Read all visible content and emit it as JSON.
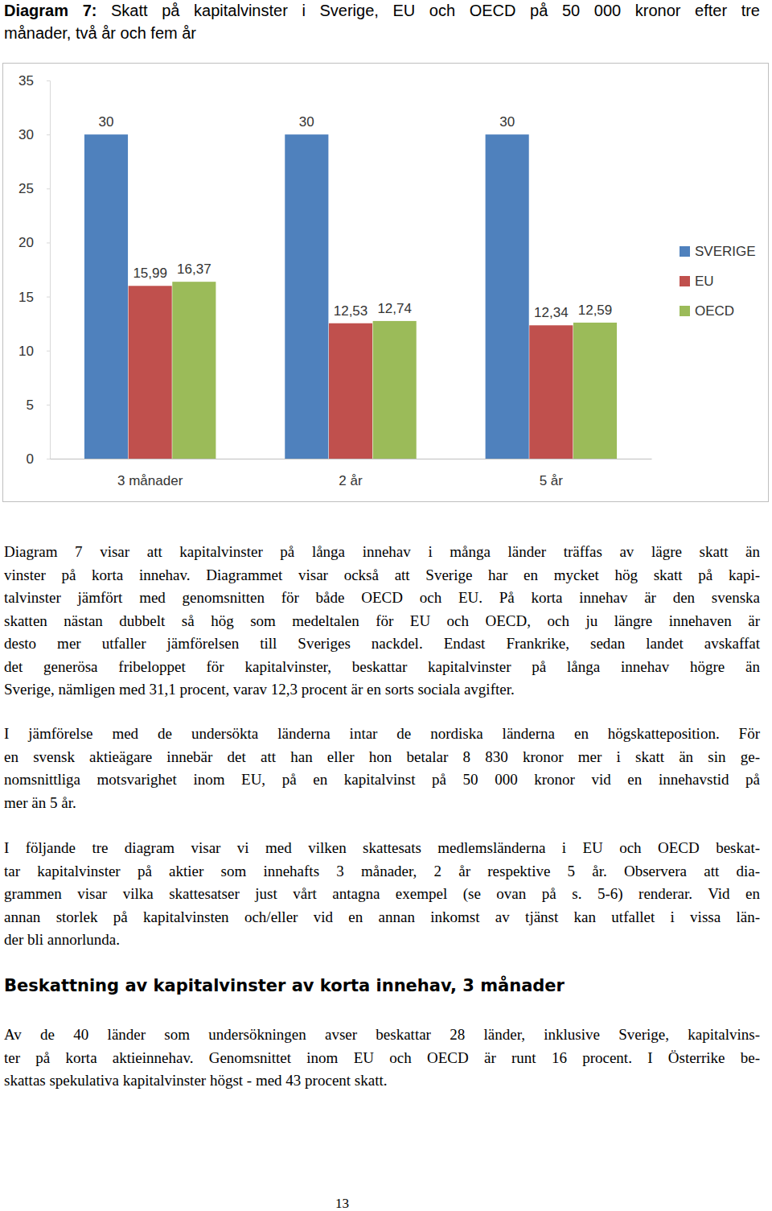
{
  "document": {
    "caption": {
      "label": "Diagram 7:",
      "lines": [
        "Skatt på kapitalvinster i Sverige, EU och OECD på 50 000 kronor efter tre",
        "månader, två år och fem år"
      ]
    },
    "paragraphs": [
      {
        "lines": [
          "Diagram 7 visar att kapitalvinster på långa innehav i många länder träffas av lägre skatt än",
          "vinster på korta innehav. Diagrammet visar också att Sverige har en mycket hög skatt på kapi-",
          "talvinster jämfört med genomsnitten för både OECD och EU. På korta innehav är den svenska",
          "skatten nästan dubbelt så hög som medeltalen för EU och OECD, och ju längre innehaven är",
          "desto mer utfaller jämförelsen till Sveriges nackdel. Endast Frankrike, sedan landet avskaffat",
          "det generösa fribeloppet för kapitalvinster, beskattar kapitalvinster på långa innehav högre än",
          "Sverige, nämligen med 31,1 procent, varav 12,3 procent är en sorts sociala avgifter."
        ]
      },
      {
        "lines": [
          "I jämförelse med de undersökta länderna intar de nordiska länderna en högskatteposition. För",
          "en svensk aktieägare innebär det att han eller hon betalar 8 830 kronor mer i skatt än sin ge-",
          "nomsnittliga motsvarighet inom EU, på en kapitalvinst på 50 000 kronor vid en innehavstid på",
          "mer än 5 år."
        ]
      },
      {
        "lines": [
          "I följande tre diagram visar vi med vilken skattesats medlemsländerna i EU och OECD beskat-",
          "tar kapitalvinster på aktier som innehafts 3 månader, 2 år respektive 5 år. Observera att dia-",
          "grammen visar vilka skattesatser just vårt antagna exempel (se ovan på s. 5-6) renderar. Vid en",
          "annan storlek på kapitalvinsten och/eller vid en annan inkomst av tjänst kan utfallet i vissa län-",
          "der bli annorlunda."
        ]
      }
    ],
    "heading": "Beskattning av kapitalvinster av korta innehav, 3 månader",
    "paragraphs_after": [
      {
        "lines": [
          "Av de 40 länder som undersökningen avser beskattar 28 länder, inklusive Sverige, kapitalvins-",
          "ter på korta aktieinnehav. Genomsnittet inom EU och OECD är runt 16 procent. I Österrike be-",
          "skattas spekulativa kapitalvinster högst - med 43 procent skatt."
        ]
      }
    ],
    "page_number": "13"
  },
  "chart_data": {
    "type": "bar",
    "categories": [
      "3 månader",
      "2 år",
      "5 år"
    ],
    "series": [
      {
        "name": "SVERIGE",
        "color": "#4f81bd",
        "values": [
          30,
          30,
          30
        ],
        "value_labels": [
          "30",
          "30",
          "30"
        ]
      },
      {
        "name": "EU",
        "color": "#c0504d",
        "values": [
          15.99,
          12.53,
          12.34
        ],
        "value_labels": [
          "15,99",
          "12,53",
          "12,34"
        ]
      },
      {
        "name": "OECD",
        "color": "#9bbb59",
        "values": [
          16.37,
          12.74,
          12.59
        ],
        "value_labels": [
          "16,37",
          "12,74",
          "12,59"
        ]
      }
    ],
    "ylim": [
      0,
      35
    ],
    "yticks": [
      0,
      5,
      10,
      15,
      20,
      25,
      30,
      35
    ],
    "grid": false,
    "data_labels": true,
    "legend": "right"
  }
}
